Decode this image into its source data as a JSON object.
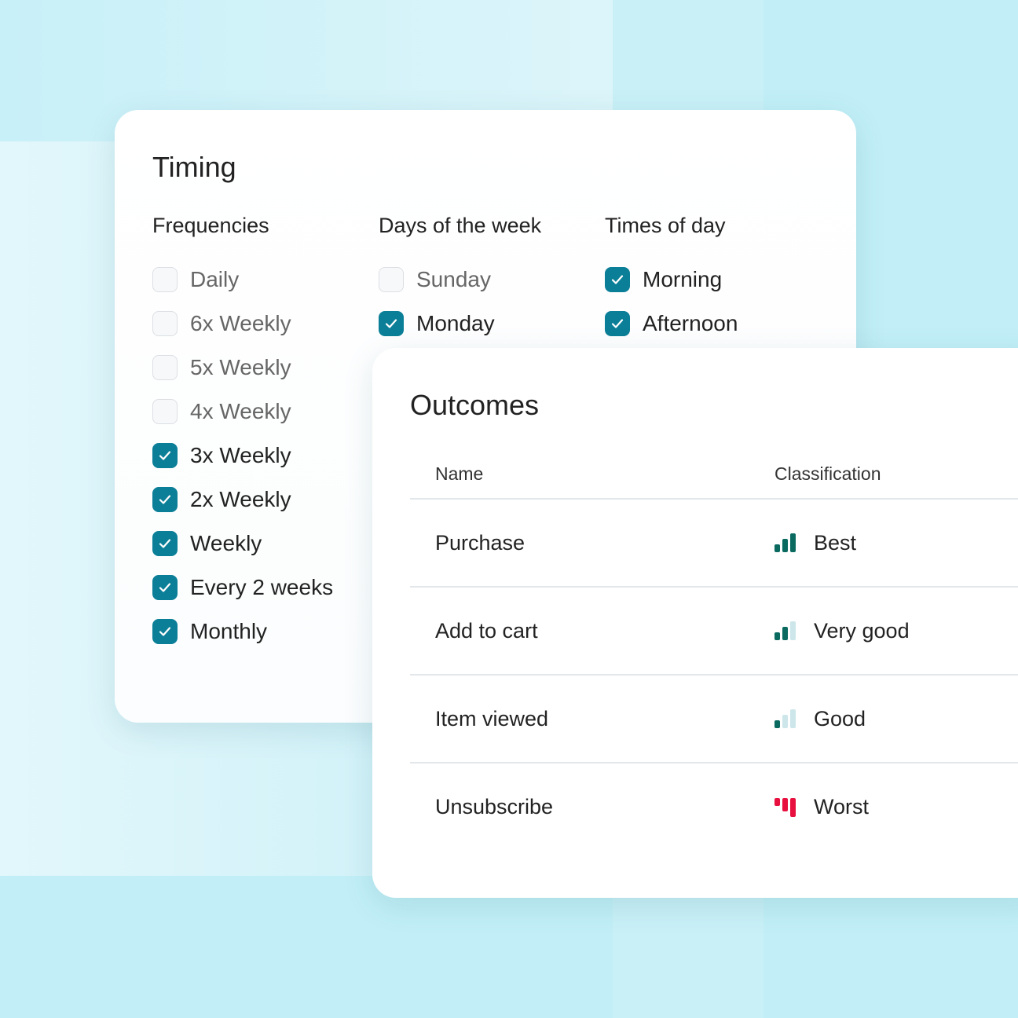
{
  "colors": {
    "accent": "#0b7f97",
    "good": "#0a6a60",
    "inactive": "#cde6ea",
    "worst": "#e8103f"
  },
  "timing": {
    "title": "Timing",
    "columns": [
      {
        "heading": "Frequencies",
        "options": [
          {
            "label": "Daily",
            "checked": false
          },
          {
            "label": "6x Weekly",
            "checked": false
          },
          {
            "label": "5x Weekly",
            "checked": false
          },
          {
            "label": "4x Weekly",
            "checked": false
          },
          {
            "label": "3x Weekly",
            "checked": true
          },
          {
            "label": "2x Weekly",
            "checked": true
          },
          {
            "label": "Weekly",
            "checked": true
          },
          {
            "label": "Every 2 weeks",
            "checked": true
          },
          {
            "label": "Monthly",
            "checked": true
          }
        ]
      },
      {
        "heading": "Days of the week",
        "options": [
          {
            "label": "Sunday",
            "checked": false
          },
          {
            "label": "Monday",
            "checked": true
          }
        ]
      },
      {
        "heading": "Times of day",
        "options": [
          {
            "label": "Morning",
            "checked": true
          },
          {
            "label": "Afternoon",
            "checked": true
          }
        ]
      }
    ]
  },
  "outcomes": {
    "title": "Outcomes",
    "headers": [
      "Name",
      "Classification"
    ],
    "rows": [
      {
        "name": "Purchase",
        "classification": "Best",
        "level": 3,
        "icon": "signal-best-icon"
      },
      {
        "name": "Add to cart",
        "classification": "Very good",
        "level": 2,
        "icon": "signal-very-good-icon"
      },
      {
        "name": "Item viewed",
        "classification": "Good",
        "level": 1,
        "icon": "signal-good-icon"
      },
      {
        "name": "Unsubscribe",
        "classification": "Worst",
        "level": -1,
        "icon": "signal-worst-icon"
      }
    ]
  }
}
